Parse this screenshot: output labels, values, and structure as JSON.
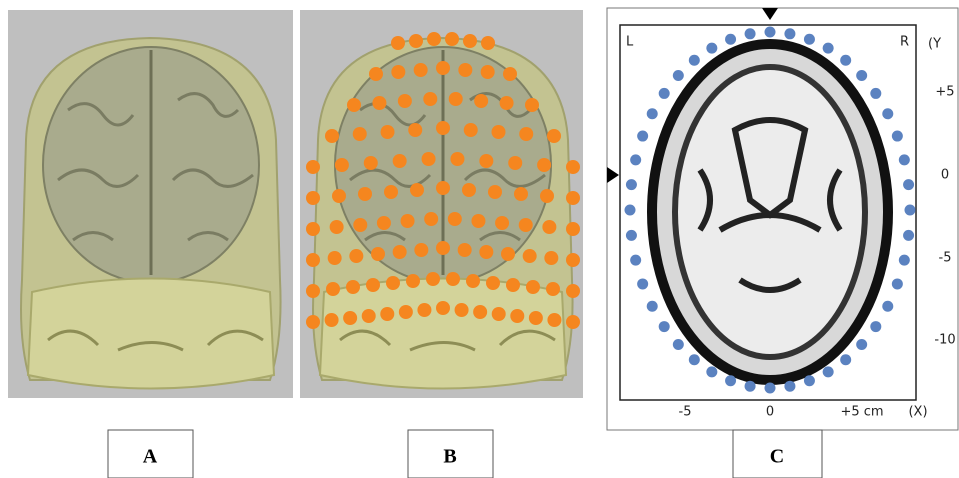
{
  "panels": [
    {
      "label": "A"
    },
    {
      "label": "B"
    },
    {
      "label": "C",
      "corner_labels": [
        "L",
        "R"
      ],
      "y_axis": {
        "title": "(Y",
        "ticks": [
          "+5",
          "0",
          "-5",
          "-10"
        ]
      },
      "x_axis": {
        "ticks": [
          "-5",
          "0",
          "+5 cm"
        ],
        "title": "(X)"
      }
    }
  ]
}
